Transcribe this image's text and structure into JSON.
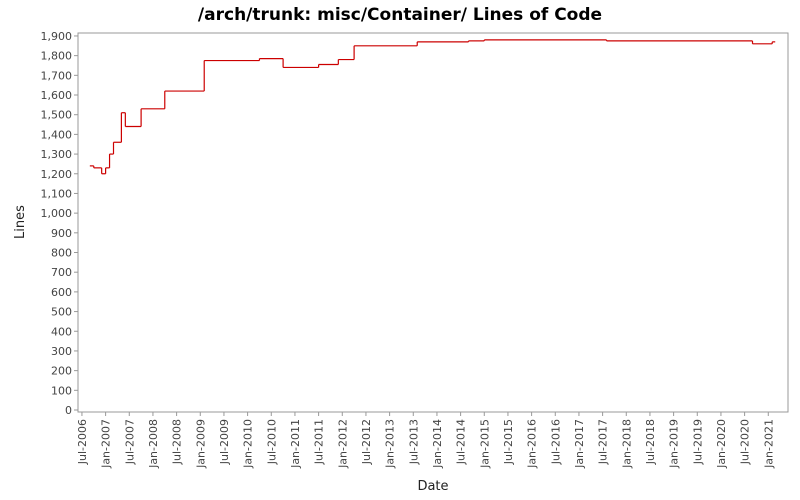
{
  "chart_data": {
    "type": "step",
    "title": "/arch/trunk: misc/Container/ Lines of Code",
    "x_label": "Date",
    "y_label": "Lines",
    "series": [
      {
        "name": "Lines",
        "color": "#cc0000",
        "x": [
          "2006-09",
          "2006-10",
          "2006-12",
          "2007-01",
          "2007-02",
          "2007-03",
          "2007-05",
          "2007-06",
          "2007-10",
          "2008-04",
          "2009-02",
          "2010-04",
          "2010-10",
          "2011-07",
          "2011-12",
          "2012-04",
          "2013-08",
          "2014-09",
          "2015-01",
          "2017-08",
          "2020-09",
          "2021-02"
        ],
        "values": [
          1240,
          1230,
          1200,
          1230,
          1300,
          1360,
          1510,
          1440,
          1530,
          1620,
          1775,
          1785,
          1740,
          1755,
          1780,
          1850,
          1870,
          1875,
          1880,
          1875,
          1860,
          1870
        ]
      }
    ],
    "xlim": [
      "2006-06",
      "2021-06"
    ],
    "xticks": [
      {
        "value": "2006-07",
        "label": "Jul-2006"
      },
      {
        "value": "2007-01",
        "label": "Jan-2007"
      },
      {
        "value": "2007-07",
        "label": "Jul-2007"
      },
      {
        "value": "2008-01",
        "label": "Jan-2008"
      },
      {
        "value": "2008-07",
        "label": "Jul-2008"
      },
      {
        "value": "2009-01",
        "label": "Jan-2009"
      },
      {
        "value": "2009-07",
        "label": "Jul-2009"
      },
      {
        "value": "2010-01",
        "label": "Jan-2010"
      },
      {
        "value": "2010-07",
        "label": "Jul-2010"
      },
      {
        "value": "2011-01",
        "label": "Jan-2011"
      },
      {
        "value": "2011-07",
        "label": "Jul-2011"
      },
      {
        "value": "2012-01",
        "label": "Jan-2012"
      },
      {
        "value": "2012-07",
        "label": "Jul-2012"
      },
      {
        "value": "2013-01",
        "label": "Jan-2013"
      },
      {
        "value": "2013-07",
        "label": "Jul-2013"
      },
      {
        "value": "2014-01",
        "label": "Jan-2014"
      },
      {
        "value": "2014-07",
        "label": "Jul-2014"
      },
      {
        "value": "2015-01",
        "label": "Jan-2015"
      },
      {
        "value": "2015-07",
        "label": "Jul-2015"
      },
      {
        "value": "2016-01",
        "label": "Jan-2016"
      },
      {
        "value": "2016-07",
        "label": "Jul-2016"
      },
      {
        "value": "2017-01",
        "label": "Jan-2017"
      },
      {
        "value": "2017-07",
        "label": "Jul-2017"
      },
      {
        "value": "2018-01",
        "label": "Jan-2018"
      },
      {
        "value": "2018-07",
        "label": "Jul-2018"
      },
      {
        "value": "2019-01",
        "label": "Jan-2019"
      },
      {
        "value": "2019-07",
        "label": "Jul-2019"
      },
      {
        "value": "2020-01",
        "label": "Jan-2020"
      },
      {
        "value": "2020-07",
        "label": "Jul-2020"
      },
      {
        "value": "2021-01",
        "label": "Jan-2021"
      }
    ],
    "ylim": [
      0,
      1915
    ],
    "yticks": [
      0,
      100,
      200,
      300,
      400,
      500,
      600,
      700,
      800,
      900,
      {
        "value": 1000,
        "label": "1,000"
      },
      {
        "value": 1100,
        "label": "1,100"
      },
      {
        "value": 1200,
        "label": "1,200"
      },
      {
        "value": 1300,
        "label": "1,300"
      },
      {
        "value": 1400,
        "label": "1,400"
      },
      {
        "value": 1500,
        "label": "1,500"
      },
      {
        "value": 1600,
        "label": "1,600"
      },
      {
        "value": 1700,
        "label": "1,700"
      },
      {
        "value": 1800,
        "label": "1,800"
      },
      {
        "value": 1900,
        "label": "1,900"
      }
    ],
    "grid": false
  }
}
